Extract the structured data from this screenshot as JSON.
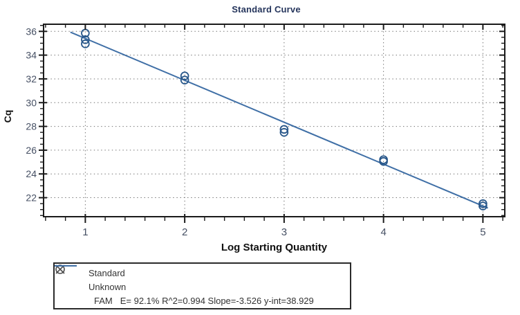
{
  "title": {
    "text": "Standard Curve"
  },
  "axes": {
    "x_label": "Log Starting Quantity",
    "y_label": "Cq"
  },
  "legend": {
    "entries": [
      {
        "symbol": "circle-marker-icon",
        "label": "Standard"
      },
      {
        "symbol": "x-marker-icon",
        "label": "Unknown"
      },
      {
        "symbol": "line-marker-icon",
        "label": "FAM",
        "stats": "E= 92.1% R^2=0.994 Slope=-3.526 y-int=38.929"
      }
    ],
    "position": "bottom-left outside plot"
  },
  "chart_data": {
    "type": "scatter",
    "title": "Standard Curve",
    "xlabel": "Log Starting Quantity",
    "ylabel": "Cq",
    "xlim": [
      0.58,
      5.22
    ],
    "ylim": [
      20.4,
      36.6
    ],
    "x_major_ticks": [
      1,
      2,
      3,
      4,
      5
    ],
    "x_minor_step": 0.2,
    "y_major_ticks": [
      22,
      24,
      26,
      28,
      30,
      32,
      34,
      36
    ],
    "y_minor_step": 0.5,
    "grid": "dotted gridlines at every major tick, mirrored ticks on all four sides",
    "series": [
      {
        "name": "Standard",
        "type": "scatter",
        "marker": "open-circle",
        "points": [
          [
            1,
            35.85
          ],
          [
            1,
            35.3
          ],
          [
            1,
            34.95
          ],
          [
            2,
            32.25
          ],
          [
            2,
            31.9
          ],
          [
            3,
            27.75
          ],
          [
            3,
            27.5
          ],
          [
            4,
            25.2
          ],
          [
            4,
            25.05
          ],
          [
            5,
            21.5
          ],
          [
            5,
            21.3
          ]
        ]
      },
      {
        "name": "FAM",
        "type": "line",
        "slope": -3.526,
        "y_intercept": 38.929,
        "x_start": 0.85,
        "x_end": 5.05,
        "efficiency_pct": 92.1,
        "r_squared": 0.994
      }
    ],
    "legend_entries": [
      "Standard",
      "Unknown",
      "FAM"
    ]
  },
  "colors": {
    "line": "#3f6fa6",
    "marker": "#28578a",
    "grid": "#6f6f6f",
    "frame": "#1a1a1a",
    "tick_label": "#454f63",
    "title": "#25355c",
    "axis_label": "#111111",
    "legend_symbol": "#4d4d4d",
    "legend_text": "#333333"
  }
}
